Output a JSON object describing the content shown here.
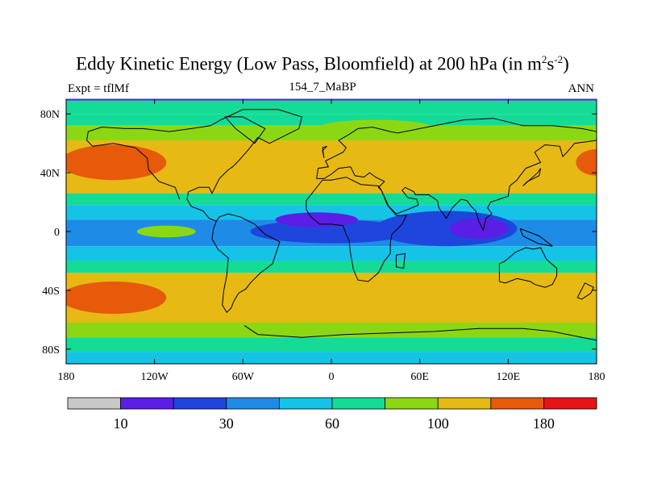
{
  "chart_data": {
    "type": "heatmap",
    "title": "Eddy Kinetic Energy (Low Pass, Bloomfield) at 200 hPa (in m",
    "title_sup1": "2",
    "title_mid": "s",
    "title_sup2": "-2",
    "title_end": ")",
    "left_label": "Expt = tflMf",
    "center_label": "154_7_MaBP",
    "right_label": "ANN",
    "x_range": [
      -180,
      180
    ],
    "y_range": [
      -90,
      90
    ],
    "x_ticks": [
      {
        "value": -180,
        "label": "180"
      },
      {
        "value": -120,
        "label": "120W"
      },
      {
        "value": -60,
        "label": "60W"
      },
      {
        "value": 0,
        "label": "0"
      },
      {
        "value": 60,
        "label": "60E"
      },
      {
        "value": 120,
        "label": "120E"
      },
      {
        "value": 180,
        "label": "180"
      }
    ],
    "y_ticks": [
      {
        "value": 80,
        "label": "80N"
      },
      {
        "value": 40,
        "label": "40N"
      },
      {
        "value": 0,
        "label": "0"
      },
      {
        "value": -40,
        "label": "40S"
      },
      {
        "value": -80,
        "label": "80S"
      }
    ],
    "colorbar": {
      "colors": [
        "#c8c8c8",
        "#5a1ee6",
        "#1e46dc",
        "#1e8ce6",
        "#14c3e6",
        "#14dc96",
        "#8cd714",
        "#e6b914",
        "#e65a0a",
        "#e61414"
      ],
      "labels": [
        {
          "index": 1,
          "label": "10"
        },
        {
          "index": 3,
          "label": "30"
        },
        {
          "index": 5,
          "label": "60"
        },
        {
          "index": 7,
          "label": "100"
        },
        {
          "index": 9,
          "label": "180"
        }
      ]
    },
    "zonal_bands": [
      {
        "lat_top": 90,
        "lat_bottom": 80,
        "level": 5
      },
      {
        "lat_top": 80,
        "lat_bottom": 72,
        "level": 5
      },
      {
        "lat_top": 72,
        "lat_bottom": 62,
        "level": 6
      },
      {
        "lat_top": 62,
        "lat_bottom": 26,
        "level": 7
      },
      {
        "lat_top": 26,
        "lat_bottom": 18,
        "level": 5
      },
      {
        "lat_top": 18,
        "lat_bottom": 8,
        "level": 4
      },
      {
        "lat_top": 8,
        "lat_bottom": -10,
        "level": 3
      },
      {
        "lat_top": -10,
        "lat_bottom": -20,
        "level": 4
      },
      {
        "lat_top": -20,
        "lat_bottom": -28,
        "level": 5
      },
      {
        "lat_top": -28,
        "lat_bottom": -62,
        "level": 7
      },
      {
        "lat_top": -62,
        "lat_bottom": -72,
        "level": 6
      },
      {
        "lat_top": -72,
        "lat_bottom": -82,
        "level": 5
      },
      {
        "lat_top": -82,
        "lat_bottom": -90,
        "level": 4
      }
    ],
    "blobs": [
      {
        "lon": -148,
        "lat": 47,
        "rlon": 36,
        "rlat": 12,
        "level": 8
      },
      {
        "lon": 180,
        "lat": 47,
        "rlon": 14,
        "rlat": 9,
        "level": 8
      },
      {
        "lon": -148,
        "lat": -45,
        "rlon": 36,
        "rlat": 11,
        "level": 8
      },
      {
        "lon": 0,
        "lat": 0,
        "rlon": 55,
        "rlat": 8,
        "level": 2
      },
      {
        "lon": -10,
        "lat": 8,
        "rlon": 28,
        "rlat": 5,
        "level": 1
      },
      {
        "lon": 78,
        "lat": 2,
        "rlon": 48,
        "rlat": 12,
        "level": 2
      },
      {
        "lon": 100,
        "lat": 2,
        "rlon": 20,
        "rlat": 7,
        "level": 1
      },
      {
        "lon": -112,
        "lat": 0,
        "rlon": 20,
        "rlat": 4,
        "level": 6
      },
      {
        "lon": 30,
        "lat": 70,
        "rlon": 40,
        "rlat": 6,
        "level": 6
      }
    ],
    "coastlines": [
      [
        [
          -103,
          22
        ],
        [
          -106,
          30
        ],
        [
          -117,
          34
        ],
        [
          -124,
          42
        ],
        [
          -125,
          50
        ],
        [
          -133,
          57
        ],
        [
          -148,
          60
        ],
        [
          -162,
          58
        ],
        [
          -166,
          62
        ],
        [
          -165,
          68
        ],
        [
          -156,
          71
        ],
        [
          -140,
          70
        ],
        [
          -128,
          70
        ],
        [
          -110,
          68
        ],
        [
          -95,
          70
        ],
        [
          -82,
          72
        ],
        [
          -75,
          76
        ],
        [
          -60,
          83
        ],
        [
          -36,
          83
        ],
        [
          -20,
          78
        ],
        [
          -22,
          70
        ],
        [
          -42,
          60
        ],
        [
          -50,
          64
        ],
        [
          -56,
          56
        ],
        [
          -64,
          47
        ],
        [
          -67,
          44
        ],
        [
          -70,
          42
        ],
        [
          -76,
          36
        ],
        [
          -78,
          32
        ],
        [
          -81,
          26
        ],
        [
          -83,
          30
        ],
        [
          -90,
          30
        ],
        [
          -97,
          27
        ],
        [
          -98,
          22
        ],
        [
          -95,
          17
        ],
        [
          -87,
          14
        ],
        [
          -83,
          9
        ],
        [
          -78,
          7
        ]
      ],
      [
        [
          -78,
          7
        ],
        [
          -76,
          10
        ],
        [
          -70,
          12
        ],
        [
          -62,
          10
        ],
        [
          -52,
          5
        ],
        [
          -45,
          -2
        ],
        [
          -35,
          -7
        ],
        [
          -37,
          -13
        ],
        [
          -40,
          -22
        ],
        [
          -48,
          -28
        ],
        [
          -55,
          -35
        ],
        [
          -58,
          -39
        ],
        [
          -63,
          -42
        ],
        [
          -66,
          -47
        ],
        [
          -68,
          -52
        ],
        [
          -71,
          -55
        ],
        [
          -74,
          -50
        ],
        [
          -73,
          -40
        ],
        [
          -71,
          -30
        ],
        [
          -70,
          -18
        ],
        [
          -77,
          -12
        ],
        [
          -81,
          -5
        ],
        [
          -80,
          2
        ],
        [
          -78,
          7
        ]
      ],
      [
        [
          -10,
          36
        ],
        [
          -9,
          43
        ],
        [
          -2,
          44
        ],
        [
          -4,
          48
        ],
        [
          2,
          51
        ],
        [
          8,
          54
        ],
        [
          10,
          57
        ],
        [
          5,
          62
        ],
        [
          12,
          66
        ],
        [
          18,
          70
        ],
        [
          28,
          71
        ],
        [
          40,
          68
        ],
        [
          45,
          67
        ],
        [
          60,
          70
        ],
        [
          75,
          73
        ],
        [
          90,
          76
        ],
        [
          110,
          77
        ],
        [
          130,
          72
        ],
        [
          150,
          72
        ],
        [
          170,
          70
        ],
        [
          180,
          68
        ]
      ],
      [
        [
          180,
          62
        ],
        [
          165,
          60
        ],
        [
          160,
          54
        ],
        [
          157,
          51
        ],
        [
          155,
          58
        ],
        [
          145,
          59
        ],
        [
          138,
          54
        ],
        [
          142,
          47
        ],
        [
          132,
          43
        ],
        [
          128,
          38
        ],
        [
          126,
          35
        ],
        [
          121,
          31
        ],
        [
          120,
          24
        ],
        [
          114,
          22
        ],
        [
          108,
          20
        ],
        [
          106,
          16
        ],
        [
          109,
          12
        ],
        [
          105,
          9
        ],
        [
          103,
          1
        ],
        [
          100,
          7
        ],
        [
          98,
          14
        ],
        [
          95,
          17
        ],
        [
          92,
          21
        ],
        [
          88,
          22
        ],
        [
          82,
          16
        ],
        [
          78,
          9
        ],
        [
          73,
          16
        ],
        [
          72,
          21
        ],
        [
          66,
          25
        ],
        [
          57,
          25
        ],
        [
          56,
          27
        ],
        [
          50,
          30
        ],
        [
          48,
          28
        ],
        [
          52,
          23
        ],
        [
          58,
          22
        ],
        [
          59,
          18
        ],
        [
          52,
          15
        ],
        [
          44,
          12
        ],
        [
          39,
          17
        ],
        [
          34,
          28
        ],
        [
          32,
          30
        ],
        [
          36,
          34
        ],
        [
          30,
          37
        ],
        [
          26,
          40
        ],
        [
          22,
          37
        ],
        [
          16,
          38
        ],
        [
          13,
          44
        ],
        [
          5,
          43
        ],
        [
          0,
          39
        ],
        [
          -5,
          36
        ],
        [
          -10,
          36
        ]
      ],
      [
        [
          -17,
          21
        ],
        [
          -17,
          15
        ],
        [
          -14,
          10
        ],
        [
          -8,
          5
        ],
        [
          0,
          5
        ],
        [
          8,
          4
        ],
        [
          10,
          -2
        ],
        [
          12,
          -6
        ],
        [
          13,
          -15
        ],
        [
          15,
          -26
        ],
        [
          18,
          -33
        ],
        [
          25,
          -34
        ],
        [
          32,
          -28
        ],
        [
          36,
          -20
        ],
        [
          40,
          -15
        ],
        [
          40,
          -8
        ],
        [
          41,
          -2
        ],
        [
          48,
          5
        ],
        [
          51,
          11
        ],
        [
          44,
          11
        ],
        [
          38,
          18
        ],
        [
          34,
          28
        ],
        [
          32,
          31
        ],
        [
          20,
          32
        ],
        [
          10,
          37
        ],
        [
          0,
          35
        ],
        [
          -6,
          35
        ],
        [
          -10,
          30
        ],
        [
          -17,
          21
        ]
      ],
      [
        [
          114,
          -22
        ],
        [
          114,
          -34
        ],
        [
          118,
          -35
        ],
        [
          126,
          -32
        ],
        [
          135,
          -34
        ],
        [
          138,
          -36
        ],
        [
          145,
          -38
        ],
        [
          150,
          -36
        ],
        [
          153,
          -30
        ],
        [
          153,
          -25
        ],
        [
          146,
          -19
        ],
        [
          142,
          -11
        ],
        [
          137,
          -12
        ],
        [
          132,
          -11
        ],
        [
          125,
          -14
        ],
        [
          118,
          -20
        ],
        [
          114,
          -22
        ]
      ],
      [
        [
          -59,
          -64
        ],
        [
          -50,
          -70
        ],
        [
          -20,
          -72
        ],
        [
          10,
          -70
        ],
        [
          40,
          -69
        ],
        [
          70,
          -68
        ],
        [
          100,
          -66
        ],
        [
          130,
          -66
        ],
        [
          150,
          -68
        ],
        [
          170,
          -72
        ],
        [
          180,
          -74
        ]
      ],
      [
        [
          172,
          -35
        ],
        [
          178,
          -38
        ],
        [
          176,
          -42
        ],
        [
          170,
          -46
        ],
        [
          167,
          -45
        ],
        [
          172,
          -35
        ]
      ],
      [
        [
          128,
          2
        ],
        [
          141,
          -3
        ],
        [
          150,
          -10
        ],
        [
          140,
          -8
        ],
        [
          130,
          -3
        ],
        [
          128,
          2
        ]
      ],
      [
        [
          44,
          -16
        ],
        [
          50,
          -15
        ],
        [
          49,
          -25
        ],
        [
          44,
          -24
        ],
        [
          44,
          -16
        ]
      ],
      [
        [
          -52,
          60
        ],
        [
          -45,
          70
        ],
        [
          -60,
          78
        ],
        [
          -72,
          78
        ],
        [
          -65,
          70
        ],
        [
          -52,
          60
        ]
      ],
      [
        [
          -5,
          50
        ],
        [
          -6,
          55
        ],
        [
          -3,
          58
        ],
        [
          -6,
          57
        ],
        [
          -5,
          50
        ]
      ],
      [
        [
          130,
          31
        ],
        [
          133,
          34
        ],
        [
          141,
          38
        ],
        [
          142,
          43
        ],
        [
          140,
          40
        ],
        [
          130,
          31
        ]
      ]
    ]
  }
}
